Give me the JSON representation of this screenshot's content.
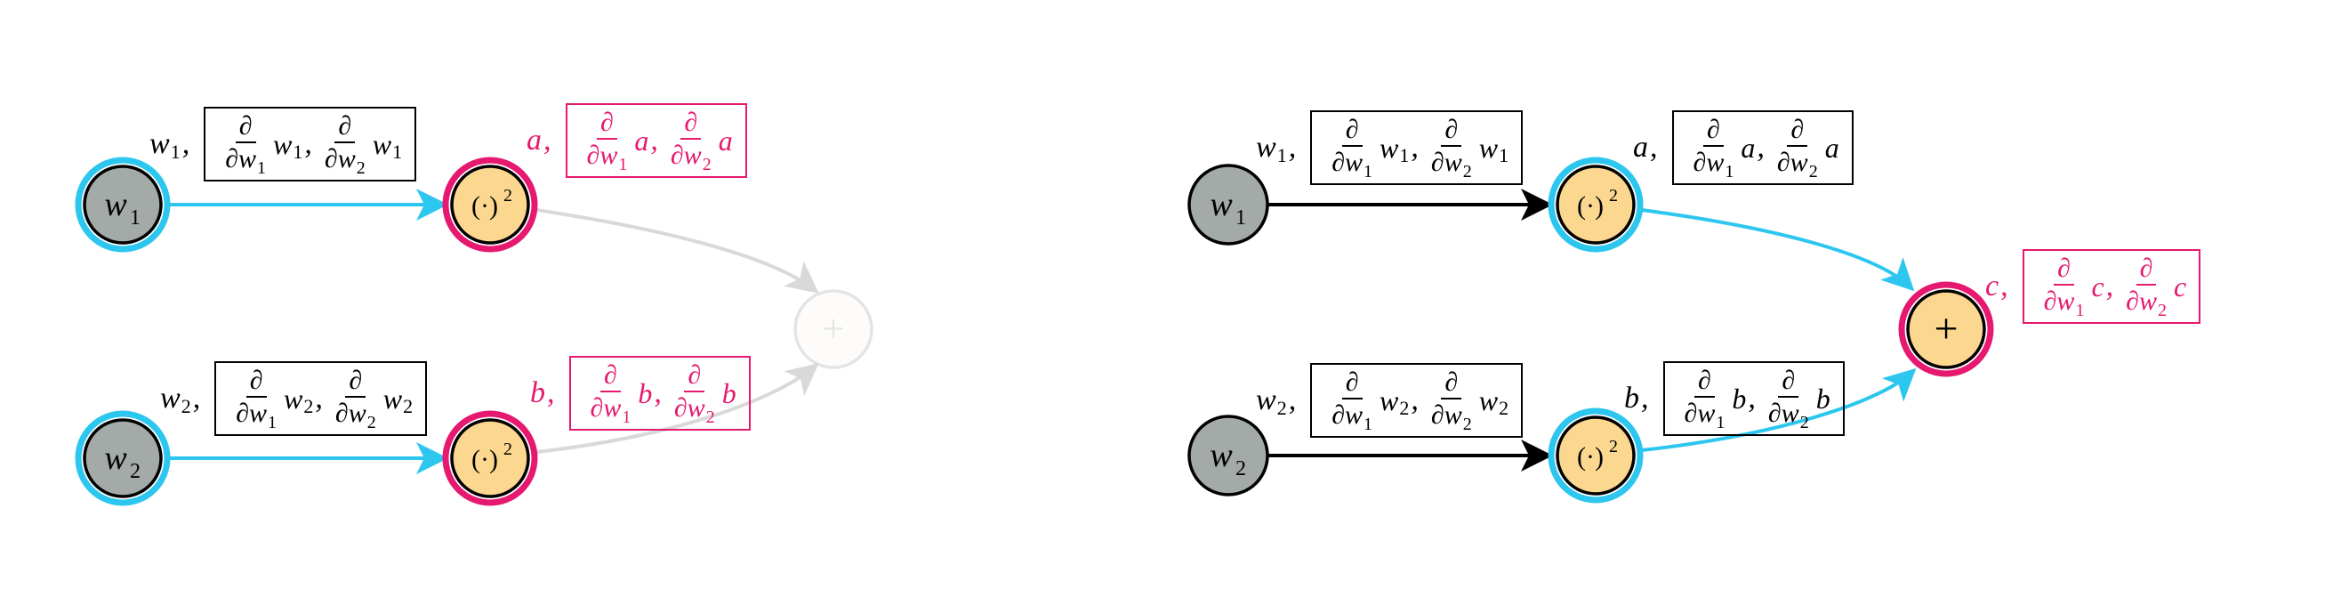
{
  "colors": {
    "cyan": "#2cc6ef",
    "pink": "#e6186f",
    "gray_fill": "#a3aaa7",
    "orange_fill": "#fbd78f",
    "faded": "#d9d9d9",
    "black": "#000000"
  },
  "left_panel": {
    "nodes": [
      {
        "id": "w1",
        "symbol": "w",
        "sub": "1",
        "fill": "gray",
        "ring": "cyan"
      },
      {
        "id": "sq1",
        "symbol": "(·)²",
        "fill": "orange",
        "ring": "pink"
      },
      {
        "id": "w2",
        "symbol": "w",
        "sub": "2",
        "fill": "gray",
        "ring": "cyan"
      },
      {
        "id": "sq2",
        "symbol": "(·)²",
        "fill": "orange",
        "ring": "pink"
      },
      {
        "id": "plus",
        "symbol": "+",
        "fill": "faded",
        "ring": "none"
      }
    ],
    "labels": {
      "w1": {
        "name": "w",
        "sub": "1",
        "d1": "w",
        "d1_sub": "1",
        "d2": "w",
        "d2_sub": "1"
      },
      "a": {
        "name": "a",
        "d1": "a",
        "d2": "a"
      },
      "w2": {
        "name": "w",
        "sub": "2",
        "d1": "w",
        "d1_sub": "2",
        "d2": "w",
        "d2_sub": "2"
      },
      "b": {
        "name": "b",
        "d1": "b",
        "d2": "b"
      }
    }
  },
  "right_panel": {
    "nodes": [
      {
        "id": "w1",
        "symbol": "w",
        "sub": "1",
        "fill": "gray",
        "ring": "none"
      },
      {
        "id": "sq1",
        "symbol": "(·)²",
        "fill": "orange",
        "ring": "cyan"
      },
      {
        "id": "w2",
        "symbol": "w",
        "sub": "2",
        "fill": "gray",
        "ring": "none"
      },
      {
        "id": "sq2",
        "symbol": "(·)²",
        "fill": "orange",
        "ring": "cyan"
      },
      {
        "id": "plus",
        "symbol": "+",
        "fill": "orange",
        "ring": "pink"
      }
    ],
    "labels": {
      "w1": {
        "name": "w",
        "sub": "1",
        "d1": "w",
        "d1_sub": "1",
        "d2": "w",
        "d2_sub": "1"
      },
      "a": {
        "name": "a",
        "d1": "a",
        "d2": "a"
      },
      "w2": {
        "name": "w",
        "sub": "2",
        "d1": "w",
        "d1_sub": "2",
        "d2": "w",
        "d2_sub": "2"
      },
      "b": {
        "name": "b",
        "d1": "b",
        "d2": "b"
      },
      "c": {
        "name": "c",
        "d1": "c",
        "d2": "c"
      }
    }
  },
  "math": {
    "partial": "∂",
    "w": "w",
    "sub1": "1",
    "sub2": "2",
    "comma": ",",
    "square_symbol": "(·)",
    "square_exp": "2",
    "plus": "+"
  }
}
